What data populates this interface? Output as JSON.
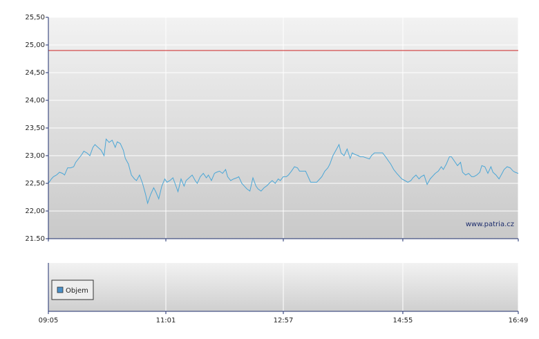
{
  "chart_data": [
    {
      "type": "line",
      "x": [
        545,
        548,
        550,
        553,
        556,
        559,
        561,
        564,
        567,
        570,
        572,
        575,
        578,
        580,
        583,
        586,
        589,
        591,
        594,
        597,
        600,
        602,
        605,
        608,
        611,
        613,
        616,
        619,
        621,
        624,
        627,
        630,
        632,
        635,
        638,
        641,
        643,
        646,
        649,
        651,
        654,
        657,
        660,
        662,
        665,
        668,
        671,
        673,
        676,
        679,
        681,
        684,
        687,
        690,
        692,
        695,
        698,
        701,
        703,
        706,
        709,
        711,
        714,
        717,
        720,
        722,
        725,
        728,
        731,
        733,
        736,
        739,
        741,
        744,
        747,
        750,
        752,
        755,
        758,
        761,
        763,
        766,
        769,
        772,
        774,
        777,
        780,
        782,
        785,
        788,
        791,
        793,
        796,
        799,
        802,
        804,
        807,
        810,
        813,
        815,
        818,
        821,
        823,
        826,
        829,
        832,
        834,
        837,
        840,
        843,
        845,
        848,
        851,
        853,
        856,
        859,
        862,
        864,
        867,
        870,
        873,
        875,
        878,
        881,
        883,
        886,
        889,
        892,
        894,
        897,
        900,
        903,
        905,
        908,
        911,
        913,
        916,
        919,
        922,
        924,
        927,
        930,
        933,
        935,
        938,
        941,
        943,
        946,
        949,
        952,
        954,
        957,
        960,
        963,
        965,
        968,
        971,
        973,
        976,
        979,
        982,
        984,
        987,
        990,
        993,
        995,
        998,
        1001,
        1004,
        1006,
        1009
      ],
      "series": [
        {
          "color": "#4aa6d6",
          "values": [
            22.5,
            22.58,
            22.62,
            22.65,
            22.7,
            22.68,
            22.65,
            22.78,
            22.78,
            22.8,
            22.88,
            22.95,
            23.02,
            23.08,
            23.05,
            23.0,
            23.15,
            23.2,
            23.15,
            23.1,
            23.0,
            23.3,
            23.24,
            23.28,
            23.15,
            23.25,
            23.22,
            23.1,
            22.95,
            22.85,
            22.65,
            22.58,
            22.55,
            22.65,
            22.5,
            22.3,
            22.14,
            22.3,
            22.42,
            22.35,
            22.22,
            22.45,
            22.58,
            22.52,
            22.55,
            22.6,
            22.45,
            22.35,
            22.58,
            22.45,
            22.55,
            22.6,
            22.65,
            22.55,
            22.5,
            22.62,
            22.68,
            22.6,
            22.65,
            22.55,
            22.68,
            22.7,
            22.72,
            22.68,
            22.75,
            22.62,
            22.55,
            22.58,
            22.6,
            22.62,
            22.5,
            22.44,
            22.4,
            22.36,
            22.6,
            22.45,
            22.4,
            22.36,
            22.42,
            22.46,
            22.5,
            22.55,
            22.5,
            22.58,
            22.55,
            22.62,
            22.62,
            22.65,
            22.72,
            22.8,
            22.78,
            22.72,
            22.72,
            22.72,
            22.6,
            22.52,
            22.52,
            22.52,
            22.58,
            22.62,
            22.72,
            22.78,
            22.85,
            23.0,
            23.1,
            23.2,
            23.05,
            23.0,
            23.12,
            22.95,
            23.05,
            23.02,
            23.0,
            22.98,
            22.98,
            22.96,
            22.94,
            23.0,
            23.05,
            23.05,
            23.05,
            23.05,
            22.98,
            22.9,
            22.85,
            22.75,
            22.68,
            22.62,
            22.58,
            22.55,
            22.52,
            22.55,
            22.6,
            22.65,
            22.58,
            22.62,
            22.65,
            22.48,
            22.58,
            22.62,
            22.68,
            22.72,
            22.8,
            22.75,
            22.85,
            22.98,
            22.98,
            22.9,
            22.82,
            22.88,
            22.7,
            22.65,
            22.68,
            22.62,
            22.62,
            22.65,
            22.7,
            22.82,
            22.8,
            22.68,
            22.8,
            22.7,
            22.65,
            22.58,
            22.68,
            22.75,
            22.8,
            22.78,
            22.72,
            22.7,
            22.68
          ]
        }
      ],
      "reference_line": {
        "value": 24.9,
        "color": "#cc2222"
      },
      "xlim": [
        545,
        1009
      ],
      "xticks": [
        {
          "value": 545,
          "label": "09:05"
        },
        {
          "value": 661,
          "label": "11:01"
        },
        {
          "value": 777,
          "label": "12:57"
        },
        {
          "value": 895,
          "label": "14:55"
        },
        {
          "value": 1009,
          "label": "16:49"
        }
      ],
      "ylim": [
        21.5,
        25.5
      ],
      "yticks": [
        {
          "value": 25.5,
          "label": "25,50"
        },
        {
          "value": 25,
          "label": "25,00"
        },
        {
          "value": 24.5,
          "label": "24,50"
        },
        {
          "value": 24,
          "label": "24,00"
        },
        {
          "value": 23.5,
          "label": "23,50"
        },
        {
          "value": 23,
          "label": "23,00"
        },
        {
          "value": 22.5,
          "label": "22,50"
        },
        {
          "value": 22,
          "label": "22,00"
        },
        {
          "value": 21.5,
          "label": "21.50"
        }
      ],
      "grid": true,
      "watermark": "www.patria.cz"
    },
    {
      "type": "bar",
      "series": [
        {
          "name": "Objem",
          "color": "#4a90c8",
          "values": []
        }
      ],
      "legend": "left"
    }
  ]
}
